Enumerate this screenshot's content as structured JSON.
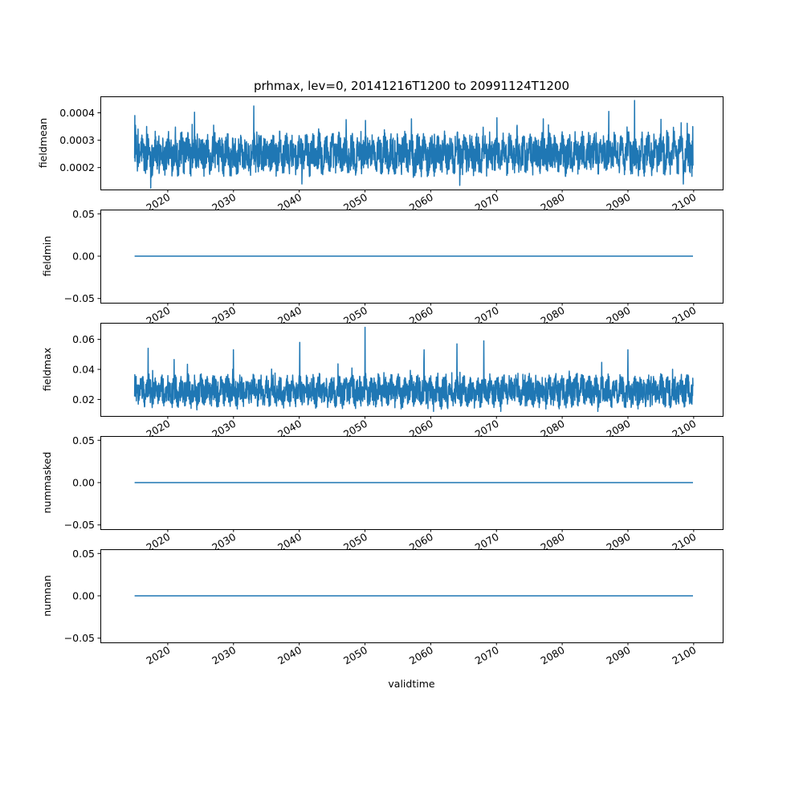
{
  "chart_data": {
    "type": "line",
    "title": "prhmax, lev=0, 20141216T1200 to 20991124T1200",
    "xlabel": "validtime",
    "x_ticks": [
      "2020",
      "2030",
      "2040",
      "2050",
      "2060",
      "2070",
      "2080",
      "2090",
      "2100"
    ],
    "x_range": [
      "2009-10",
      "2104-06"
    ],
    "data_x_range": [
      "2014-12-16",
      "2099-11-24"
    ],
    "line_color": "#1f77b4",
    "grid": false,
    "legend": "none",
    "panels": [
      {
        "ylabel": "fieldmean",
        "ylim": [
          0.00012,
          0.00046
        ],
        "y_ticks": [
          "0.0002",
          "0.0003",
          "0.0004"
        ],
        "series_summary": {
          "typical_low": 0.00019,
          "typical_high": 0.00031,
          "min": 0.000125,
          "max": 0.000445
        },
        "peaks": [
          [
            "2015-01",
            0.00039
          ],
          [
            "2024-02",
            0.000402
          ],
          [
            "2033-02",
            0.000425
          ],
          [
            "2050-02",
            0.000372
          ],
          [
            "2057-02",
            0.000378
          ],
          [
            "2070-02",
            0.000382
          ],
          [
            "2087-02",
            0.000405
          ],
          [
            "2091-01",
            0.000445
          ]
        ],
        "troughs": [
          [
            "2017-06",
            0.000125
          ],
          [
            "2040-06",
            0.00014
          ],
          [
            "2064-06",
            0.000135
          ],
          [
            "2098-06",
            0.00014
          ]
        ]
      },
      {
        "ylabel": "fieldmin",
        "ylim": [
          -0.055,
          0.055
        ],
        "y_ticks": [
          "−0.05",
          "0.00",
          "0.05"
        ],
        "constant_value": 0.0
      },
      {
        "ylabel": "fieldmax",
        "ylim": [
          0.009,
          0.071
        ],
        "y_ticks": [
          "0.02",
          "0.04",
          "0.06"
        ],
        "series_summary": {
          "typical_low": 0.017,
          "typical_high": 0.034,
          "min": 0.012,
          "max": 0.068
        },
        "peaks": [
          [
            "2017-01",
            0.054
          ],
          [
            "2030-01",
            0.053
          ],
          [
            "2040-02",
            0.058
          ],
          [
            "2050-01",
            0.068
          ],
          [
            "2059-01",
            0.053
          ],
          [
            "2064-01",
            0.057
          ],
          [
            "2068-02",
            0.059
          ],
          [
            "2090-01",
            0.053
          ]
        ],
        "troughs": [
          [
            "2024-06",
            0.013
          ],
          [
            "2060-06",
            0.012
          ],
          [
            "2085-06",
            0.012
          ]
        ]
      },
      {
        "ylabel": "nummasked",
        "ylim": [
          -0.055,
          0.055
        ],
        "y_ticks": [
          "−0.05",
          "0.00",
          "0.05"
        ],
        "constant_value": 0.0
      },
      {
        "ylabel": "numnan",
        "ylim": [
          -0.055,
          0.055
        ],
        "y_ticks": [
          "−0.05",
          "0.00",
          "0.05"
        ],
        "constant_value": 0.0
      }
    ]
  }
}
